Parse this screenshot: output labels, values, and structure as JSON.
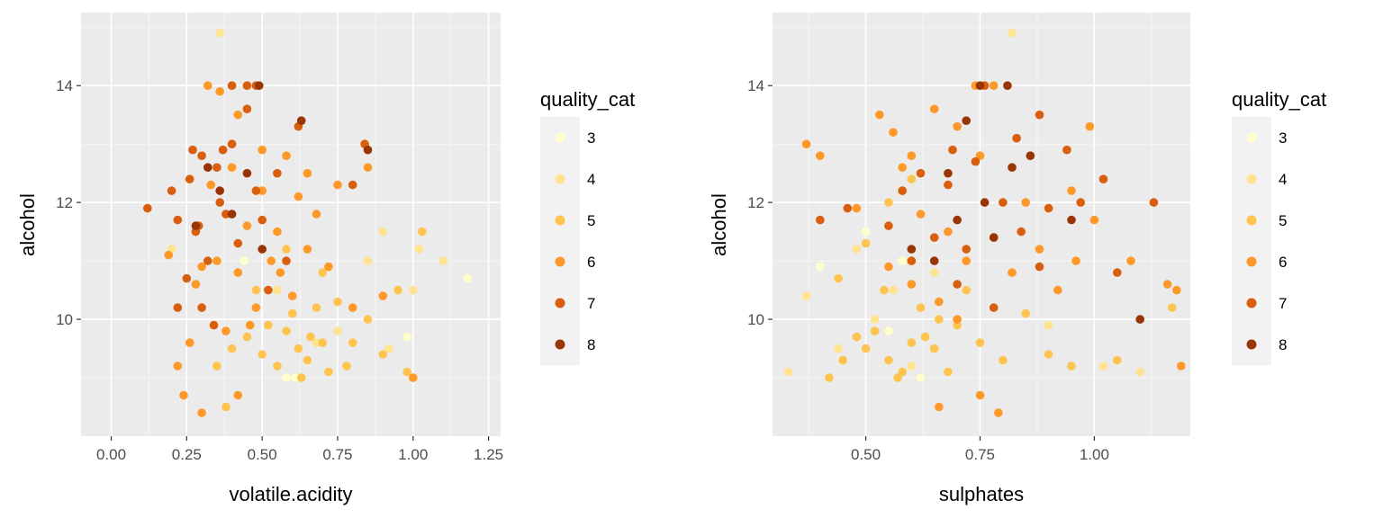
{
  "chart_data": [
    {
      "type": "scatter",
      "xlabel": "volatile.acidity",
      "ylabel": "alcohol",
      "xlim": [
        -0.1,
        1.29
      ],
      "ylim": [
        8.0,
        15.25
      ],
      "xticks": [
        0.0,
        0.25,
        0.5,
        0.75,
        1.0,
        1.25
      ],
      "xtick_labels": [
        "0.00",
        "0.25",
        "0.50",
        "0.75",
        "1.00",
        "1.25"
      ],
      "yticks": [
        10,
        12,
        14
      ],
      "ytick_labels": [
        "10",
        "12",
        "14"
      ],
      "grid": true,
      "legend": {
        "title": "quality_cat",
        "position": "right",
        "entries": [
          "3",
          "4",
          "5",
          "6",
          "7",
          "8"
        ]
      },
      "colors": {
        "3": "#ffffcc",
        "4": "#ffe391",
        "5": "#fec44f",
        "6": "#fe9929",
        "7": "#d95f0e",
        "8": "#993404"
      },
      "series": [
        {
          "name": "3",
          "points": [
            [
              0.58,
              9.0
            ],
            [
              1.18,
              10.7
            ],
            [
              0.98,
              9.7
            ],
            [
              0.61,
              9.0
            ],
            [
              0.44,
              11.0
            ]
          ]
        },
        {
          "name": "4",
          "points": [
            [
              0.36,
              14.9
            ],
            [
              0.75,
              9.8
            ],
            [
              0.9,
              11.5
            ],
            [
              1.02,
              11.2
            ],
            [
              1.1,
              11.0
            ],
            [
              0.92,
              9.5
            ],
            [
              0.68,
              9.6
            ],
            [
              0.55,
              10.5
            ],
            [
              1.0,
              10.5
            ],
            [
              0.2,
              11.2
            ],
            [
              0.85,
              11.0
            ]
          ]
        },
        {
          "name": "5",
          "points": [
            [
              0.62,
              9.5
            ],
            [
              0.65,
              9.3
            ],
            [
              0.58,
              9.8
            ],
            [
              0.7,
              9.6
            ],
            [
              0.5,
              9.4
            ],
            [
              0.45,
              9.7
            ],
            [
              0.55,
              9.2
            ],
            [
              0.6,
              10.1
            ],
            [
              0.72,
              9.1
            ],
            [
              0.4,
              9.5
            ],
            [
              0.8,
              9.6
            ],
            [
              0.35,
              9.2
            ],
            [
              0.68,
              10.2
            ],
            [
              0.52,
              9.9
            ],
            [
              0.63,
              9.0
            ],
            [
              0.9,
              9.4
            ],
            [
              0.85,
              10.0
            ],
            [
              0.75,
              10.3
            ],
            [
              0.48,
              10.5
            ],
            [
              0.66,
              9.7
            ],
            [
              0.7,
              10.8
            ],
            [
              0.58,
              11.2
            ],
            [
              0.95,
              10.5
            ],
            [
              0.78,
              9.2
            ],
            [
              1.03,
              11.5
            ],
            [
              0.38,
              8.5
            ],
            [
              0.98,
              9.1
            ]
          ]
        },
        {
          "name": "6",
          "points": [
            [
              0.3,
              8.4
            ],
            [
              0.32,
              14.0
            ],
            [
              0.36,
              13.9
            ],
            [
              0.42,
              13.5
            ],
            [
              0.5,
              12.9
            ],
            [
              0.58,
              12.8
            ],
            [
              0.65,
              12.5
            ],
            [
              0.55,
              11.5
            ],
            [
              0.35,
              11.0
            ],
            [
              0.42,
              10.8
            ],
            [
              0.48,
              10.2
            ],
            [
              0.38,
              9.8
            ],
            [
              0.6,
              10.4
            ],
            [
              0.26,
              9.6
            ],
            [
              0.28,
              10.6
            ],
            [
              0.65,
              11.2
            ],
            [
              0.72,
              10.9
            ],
            [
              0.8,
              10.2
            ],
            [
              0.45,
              11.6
            ],
            [
              0.5,
              12.2
            ],
            [
              0.68,
              11.8
            ],
            [
              0.62,
              12.1
            ],
            [
              0.33,
              12.3
            ],
            [
              0.4,
              12.6
            ],
            [
              0.53,
              11.0
            ],
            [
              0.3,
              10.9
            ],
            [
              0.19,
              11.1
            ],
            [
              0.75,
              12.3
            ],
            [
              0.85,
              12.6
            ],
            [
              0.24,
              8.7
            ],
            [
              0.42,
              8.7
            ],
            [
              1.0,
              9.0
            ],
            [
              0.9,
              10.4
            ],
            [
              0.22,
              9.2
            ],
            [
              0.56,
              10.8
            ],
            [
              0.46,
              9.9
            ]
          ]
        },
        {
          "name": "7",
          "points": [
            [
              0.12,
              11.9
            ],
            [
              0.22,
              11.7
            ],
            [
              0.26,
              12.4
            ],
            [
              0.3,
              12.8
            ],
            [
              0.28,
              11.5
            ],
            [
              0.35,
              12.6
            ],
            [
              0.38,
              11.8
            ],
            [
              0.32,
              11.0
            ],
            [
              0.25,
              10.7
            ],
            [
              0.4,
              13.0
            ],
            [
              0.45,
              13.6
            ],
            [
              0.36,
              12.0
            ],
            [
              0.42,
              11.3
            ],
            [
              0.48,
              12.2
            ],
            [
              0.2,
              12.2
            ],
            [
              0.3,
              10.2
            ],
            [
              0.34,
              9.9
            ],
            [
              0.5,
              11.7
            ],
            [
              0.55,
              12.5
            ],
            [
              0.29,
              11.6
            ],
            [
              0.22,
              10.2
            ],
            [
              0.4,
              14.0
            ],
            [
              0.45,
              14.0
            ],
            [
              0.48,
              14.0
            ],
            [
              0.62,
              13.3
            ],
            [
              0.84,
              13.0
            ],
            [
              0.8,
              12.3
            ],
            [
              0.58,
              11.0
            ],
            [
              0.27,
              12.9
            ],
            [
              0.37,
              12.9
            ],
            [
              0.52,
              10.5
            ]
          ]
        },
        {
          "name": "8",
          "points": [
            [
              0.49,
              14.0
            ],
            [
              0.63,
              13.4
            ],
            [
              0.85,
              12.9
            ],
            [
              0.32,
              12.6
            ],
            [
              0.4,
              11.8
            ],
            [
              0.28,
              11.6
            ],
            [
              0.45,
              12.5
            ],
            [
              0.5,
              11.2
            ],
            [
              0.36,
              12.2
            ]
          ]
        }
      ]
    },
    {
      "type": "scatter",
      "xlabel": "sulphates",
      "ylabel": "alcohol",
      "xlim": [
        0.296,
        1.21
      ],
      "ylim": [
        8.0,
        15.25
      ],
      "xticks": [
        0.5,
        0.75,
        1.0
      ],
      "xtick_labels": [
        "0.50",
        "0.75",
        "1.00"
      ],
      "yticks": [
        10,
        12,
        14
      ],
      "ytick_labels": [
        "10",
        "12",
        "14"
      ],
      "grid": true,
      "legend": {
        "title": "quality_cat",
        "position": "right",
        "entries": [
          "3",
          "4",
          "5",
          "6",
          "7",
          "8"
        ]
      },
      "colors": {
        "3": "#ffffcc",
        "4": "#ffe391",
        "5": "#fec44f",
        "6": "#fe9929",
        "7": "#d95f0e",
        "8": "#993404"
      },
      "series": [
        {
          "name": "3",
          "points": [
            [
              0.4,
              10.9
            ],
            [
              0.55,
              9.8
            ],
            [
              0.5,
              11.5
            ],
            [
              0.62,
              9.0
            ],
            [
              0.58,
              11.0
            ]
          ]
        },
        {
          "name": "4",
          "points": [
            [
              0.33,
              9.1
            ],
            [
              0.37,
              10.4
            ],
            [
              0.82,
              14.9
            ],
            [
              0.44,
              9.5
            ],
            [
              0.52,
              10.0
            ],
            [
              0.6,
              9.2
            ],
            [
              0.9,
              9.9
            ],
            [
              1.02,
              9.2
            ],
            [
              1.1,
              9.1
            ],
            [
              0.48,
              11.2
            ],
            [
              0.56,
              10.5
            ],
            [
              0.65,
              10.8
            ]
          ]
        },
        {
          "name": "5",
          "points": [
            [
              0.5,
              9.5
            ],
            [
              0.55,
              9.3
            ],
            [
              0.6,
              9.6
            ],
            [
              0.58,
              9.1
            ],
            [
              0.52,
              9.8
            ],
            [
              0.62,
              10.2
            ],
            [
              0.57,
              9.0
            ],
            [
              0.48,
              9.7
            ],
            [
              0.45,
              9.3
            ],
            [
              0.65,
              9.5
            ],
            [
              0.7,
              9.9
            ],
            [
              0.54,
              10.5
            ],
            [
              0.66,
              10.0
            ],
            [
              0.75,
              9.6
            ],
            [
              0.8,
              9.3
            ],
            [
              0.85,
              10.1
            ],
            [
              0.6,
              11.0
            ],
            [
              0.5,
              11.3
            ],
            [
              0.44,
              10.7
            ],
            [
              0.55,
              12.0
            ],
            [
              0.6,
              12.4
            ],
            [
              0.72,
              10.5
            ],
            [
              0.9,
              9.4
            ],
            [
              1.05,
              9.3
            ],
            [
              1.17,
              10.2
            ],
            [
              0.95,
              9.2
            ],
            [
              0.68,
              9.1
            ],
            [
              0.42,
              9.0
            ],
            [
              0.63,
              9.7
            ]
          ]
        },
        {
          "name": "6",
          "points": [
            [
              0.37,
              13.0
            ],
            [
              0.4,
              12.8
            ],
            [
              0.53,
              13.5
            ],
            [
              0.56,
              13.2
            ],
            [
              0.6,
              12.8
            ],
            [
              0.65,
              13.6
            ],
            [
              0.7,
              13.3
            ],
            [
              0.75,
              12.8
            ],
            [
              0.58,
              12.2
            ],
            [
              0.62,
              11.8
            ],
            [
              0.68,
              11.5
            ],
            [
              0.72,
              11.0
            ],
            [
              0.78,
              11.4
            ],
            [
              0.82,
              10.8
            ],
            [
              0.6,
              10.6
            ],
            [
              0.66,
              10.3
            ],
            [
              0.7,
              10.0
            ],
            [
              0.55,
              10.9
            ],
            [
              0.48,
              11.9
            ],
            [
              0.85,
              12.0
            ],
            [
              0.88,
              11.2
            ],
            [
              0.92,
              10.5
            ],
            [
              0.95,
              12.2
            ],
            [
              1.0,
              11.7
            ],
            [
              0.75,
              8.7
            ],
            [
              0.79,
              8.4
            ],
            [
              0.66,
              8.5
            ],
            [
              1.16,
              10.6
            ],
            [
              1.18,
              10.5
            ],
            [
              1.19,
              9.2
            ],
            [
              0.99,
              13.3
            ],
            [
              0.96,
              11.0
            ],
            [
              1.08,
              11.0
            ],
            [
              0.58,
              12.6
            ],
            [
              0.74,
              14.0
            ],
            [
              0.78,
              14.0
            ]
          ]
        },
        {
          "name": "7",
          "points": [
            [
              0.4,
              11.7
            ],
            [
              0.46,
              11.9
            ],
            [
              0.58,
              12.2
            ],
            [
              0.62,
              12.5
            ],
            [
              0.68,
              12.3
            ],
            [
              0.74,
              12.7
            ],
            [
              0.8,
              12.0
            ],
            [
              0.65,
              11.4
            ],
            [
              0.72,
              11.2
            ],
            [
              0.84,
              11.5
            ],
            [
              0.9,
              11.9
            ],
            [
              0.7,
              10.6
            ],
            [
              0.78,
              10.2
            ],
            [
              0.88,
              10.9
            ],
            [
              0.76,
              14.0
            ],
            [
              0.88,
              13.5
            ],
            [
              0.94,
              12.9
            ],
            [
              1.13,
              12.0
            ],
            [
              1.05,
              10.8
            ],
            [
              1.02,
              12.4
            ],
            [
              0.83,
              13.1
            ],
            [
              0.6,
              11.0
            ],
            [
              0.97,
              12.0
            ],
            [
              0.55,
              11.6
            ],
            [
              0.69,
              12.9
            ]
          ]
        },
        {
          "name": "8",
          "points": [
            [
              0.81,
              14.0
            ],
            [
              0.75,
              14.0
            ],
            [
              0.72,
              13.4
            ],
            [
              0.68,
              12.5
            ],
            [
              0.76,
              12.0
            ],
            [
              0.82,
              12.6
            ],
            [
              0.86,
              12.8
            ],
            [
              0.65,
              11.0
            ],
            [
              0.7,
              11.7
            ],
            [
              0.95,
              11.7
            ],
            [
              1.1,
              10.0
            ],
            [
              0.6,
              11.2
            ],
            [
              0.78,
              11.4
            ]
          ]
        }
      ]
    }
  ]
}
